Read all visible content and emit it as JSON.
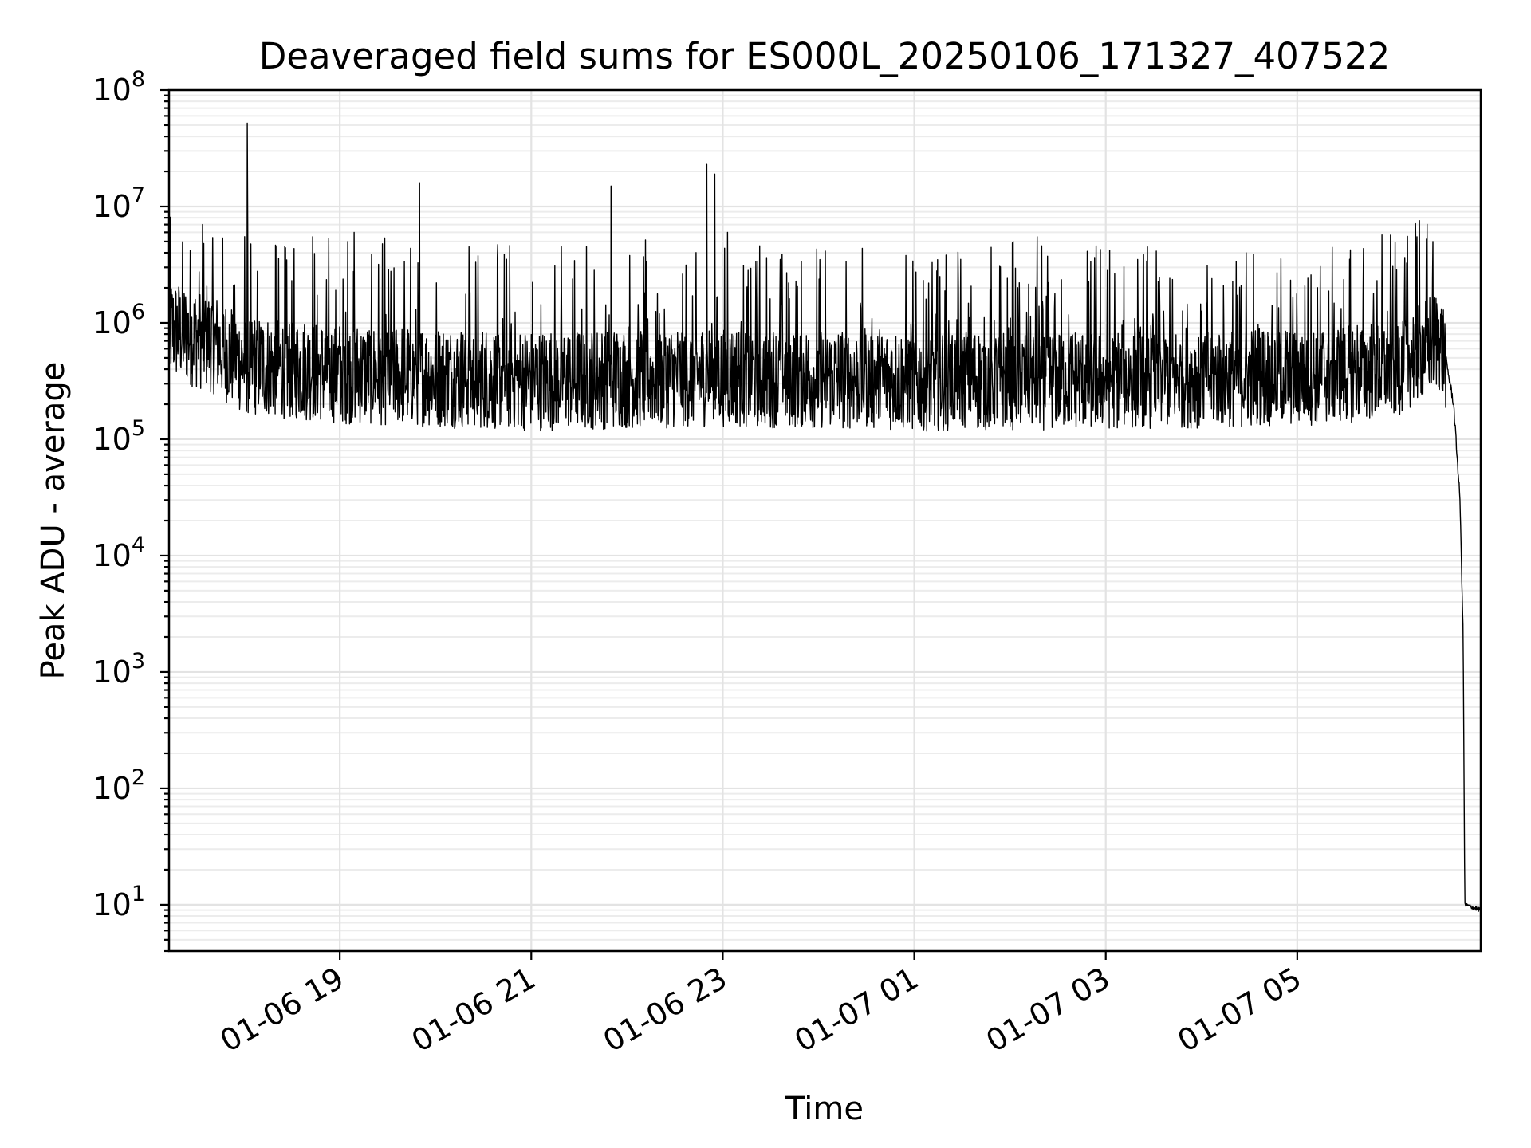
{
  "chart_data": {
    "type": "line",
    "title": "Deaveraged field sums for ES000L_20250106_171327_407522",
    "xlabel": "Time",
    "ylabel": "Peak ADU - average",
    "yscale": "log",
    "ylim": [
      4,
      100000000
    ],
    "xlim": [
      "2025-01-06 17:13",
      "2025-01-07 06:55"
    ],
    "grid": true,
    "legend": "none",
    "x_ticks": [
      {
        "label": "01-06 19",
        "value": "2025-01-06 19:00"
      },
      {
        "label": "01-06 21",
        "value": "2025-01-06 21:00"
      },
      {
        "label": "01-06 23",
        "value": "2025-01-06 23:00"
      },
      {
        "label": "01-07 01",
        "value": "2025-01-07 01:00"
      },
      {
        "label": "01-07 03",
        "value": "2025-01-07 03:00"
      },
      {
        "label": "01-07 05",
        "value": "2025-01-07 05:00"
      }
    ],
    "y_ticks": [
      {
        "base": "10",
        "exp": "1",
        "value": 10
      },
      {
        "base": "10",
        "exp": "2",
        "value": 100
      },
      {
        "base": "10",
        "exp": "3",
        "value": 1000
      },
      {
        "base": "10",
        "exp": "4",
        "value": 10000
      },
      {
        "base": "10",
        "exp": "5",
        "value": 100000
      },
      {
        "base": "10",
        "exp": "6",
        "value": 1000000
      },
      {
        "base": "10",
        "exp": "7",
        "value": 10000000
      },
      {
        "base": "10",
        "exp": "8",
        "value": 100000000
      }
    ],
    "series": [
      {
        "color": "#000000",
        "baseline": [
          {
            "x": "2025-01-06 17:13",
            "y": 900000
          },
          {
            "x": "2025-01-06 17:40",
            "y": 700000
          },
          {
            "x": "2025-01-06 18:00",
            "y": 450000
          },
          {
            "x": "2025-01-06 19:00",
            "y": 380000
          },
          {
            "x": "2025-01-06 21:00",
            "y": 330000
          },
          {
            "x": "2025-01-06 23:00",
            "y": 360000
          },
          {
            "x": "2025-01-07 01:00",
            "y": 330000
          },
          {
            "x": "2025-01-07 03:00",
            "y": 340000
          },
          {
            "x": "2025-01-07 05:00",
            "y": 360000
          },
          {
            "x": "2025-01-07 06:00",
            "y": 420000
          },
          {
            "x": "2025-01-07 06:28",
            "y": 750000
          },
          {
            "x": "2025-01-07 06:33",
            "y": 500000
          },
          {
            "x": "2025-01-07 06:38",
            "y": 200000
          },
          {
            "x": "2025-01-07 06:42",
            "y": 30000
          },
          {
            "x": "2025-01-07 06:44",
            "y": 2000
          },
          {
            "x": "2025-01-07 06:45",
            "y": 10
          },
          {
            "x": "2025-01-07 06:55",
            "y": 9
          }
        ],
        "spikes": [
          {
            "x": "2025-01-06 17:34",
            "y": 7000000
          },
          {
            "x": "2025-01-06 18:02",
            "y": 52000000
          },
          {
            "x": "2025-01-06 18:20",
            "y": 4500000
          },
          {
            "x": "2025-01-06 18:43",
            "y": 5500000
          },
          {
            "x": "2025-01-06 19:05",
            "y": 5000000
          },
          {
            "x": "2025-01-06 19:09",
            "y": 6000000
          },
          {
            "x": "2025-01-06 19:50",
            "y": 16000000
          },
          {
            "x": "2025-01-06 20:21",
            "y": 4500000
          },
          {
            "x": "2025-01-06 21:50",
            "y": 15000000
          },
          {
            "x": "2025-01-06 22:50",
            "y": 23000000
          },
          {
            "x": "2025-01-06 22:55",
            "y": 19000000
          },
          {
            "x": "2025-01-06 23:03",
            "y": 6000000
          },
          {
            "x": "2025-01-06 23:36",
            "y": 3500000
          },
          {
            "x": "2025-01-07 02:02",
            "y": 5000000
          },
          {
            "x": "2025-01-07 02:17",
            "y": 5500000
          },
          {
            "x": "2025-01-07 03:20",
            "y": 3500000
          },
          {
            "x": "2025-01-07 04:28",
            "y": 4000000
          },
          {
            "x": "2025-01-07 06:15",
            "y": 5500000
          },
          {
            "x": "2025-01-07 06:25",
            "y": 5000000
          }
        ]
      }
    ]
  }
}
